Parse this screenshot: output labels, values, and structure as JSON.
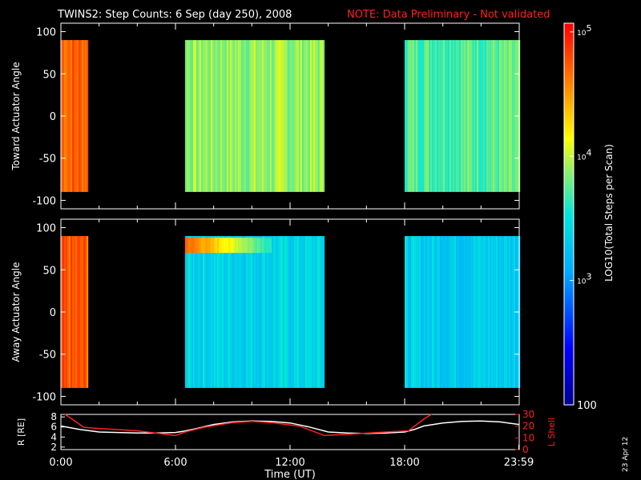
{
  "title": "TWINS2: Step Counts:  6 Sep (day 250), 2008",
  "note": "NOTE: Data Preliminary - Not validated",
  "date_stamp": "23 Apr 12",
  "chart_data": [
    {
      "type": "heatmap",
      "name": "Toward Actuator Angle",
      "ylabel": "Toward Actuator Angle",
      "ylim": [
        -110,
        110
      ],
      "yticks": [
        "100",
        "50",
        "0",
        "-50",
        "-100"
      ],
      "ytick_values": [
        100,
        50,
        0,
        -50,
        -100
      ],
      "xlim_hours": [
        0,
        24
      ],
      "data_row_range": [
        -90,
        90
      ],
      "segments": [
        {
          "start_h": 0.0,
          "end_h": 1.4,
          "level": 4.72
        },
        {
          "start_h": 6.5,
          "end_h": 13.8,
          "level": 3.9
        },
        {
          "start_h": 18.0,
          "end_h": 24.0,
          "level": 3.75
        }
      ]
    },
    {
      "type": "heatmap",
      "name": "Away Actuator Angle",
      "ylabel": "Away Actuator Angle",
      "ylim": [
        -110,
        110
      ],
      "yticks": [
        "100",
        "50",
        "0",
        "-50",
        "-100"
      ],
      "ytick_values": [
        100,
        50,
        0,
        -50,
        -100
      ],
      "xlim_hours": [
        0,
        24
      ],
      "data_row_range": [
        -90,
        90
      ],
      "segments": [
        {
          "start_h": 0.0,
          "end_h": 1.4,
          "level": 4.72
        },
        {
          "start_h": 6.5,
          "end_h": 13.8,
          "level": 3.4,
          "hot_band": {
            "from_deg": 70,
            "to_deg": 88,
            "level": 4.7,
            "end_h": 11.0
          }
        },
        {
          "start_h": 18.0,
          "end_h": 24.0,
          "level": 3.35
        }
      ]
    },
    {
      "type": "line",
      "name": "orbit",
      "ylabel": "R [RE]",
      "y2label": "L Shell",
      "ylim": [
        1.5,
        8.5
      ],
      "y2lim": [
        0,
        30
      ],
      "yticks": [
        "8",
        "6",
        "4",
        "2"
      ],
      "ytick_values": [
        8,
        6,
        4,
        2
      ],
      "y2ticks": [
        "30",
        "20",
        "10",
        "0"
      ],
      "y2tick_values": [
        30,
        20,
        10,
        0
      ],
      "xlabel": "Time (UT)",
      "xticks": [
        "0:00",
        "6:00",
        "12:00",
        "18:00",
        "23:59"
      ],
      "xtick_values": [
        0,
        6,
        12,
        18,
        23.98
      ],
      "series": [
        {
          "color": "#ffffff",
          "x": [
            0,
            1,
            2,
            3,
            4,
            5,
            6,
            6.5,
            7,
            8,
            9,
            10,
            11,
            12,
            13,
            14,
            15,
            16,
            17,
            18,
            18.5,
            19,
            20,
            21,
            22,
            23,
            24
          ],
          "y": [
            6.2,
            5.5,
            5.0,
            4.9,
            4.8,
            4.8,
            4.9,
            5.2,
            5.6,
            6.5,
            7.0,
            7.2,
            7.1,
            6.8,
            6.0,
            5.0,
            4.8,
            4.7,
            4.8,
            5.0,
            5.5,
            6.2,
            6.8,
            7.1,
            7.2,
            7.0,
            6.5
          ]
        },
        {
          "color": "#ff2020",
          "x": [
            0.2,
            0.5,
            1.2,
            2.0,
            4.0,
            6.0,
            6.5,
            7.5,
            9.0,
            10.0,
            11.0,
            12.5,
            13.8,
            15.0,
            17.0,
            18.2,
            19.0,
            19.4
          ],
          "y2": [
            30,
            27,
            19,
            18,
            16,
            12,
            15,
            19,
            23,
            24,
            23,
            20,
            12,
            13,
            15,
            16,
            26,
            30
          ]
        }
      ]
    }
  ],
  "colorbar": {
    "label": "LOG10(Total Steps per Scan)",
    "ticks": [
      "10^5",
      "10^4",
      "10^3",
      "100"
    ],
    "tick_values": [
      5,
      4,
      3,
      2
    ],
    "range": [
      2,
      5.07
    ]
  }
}
